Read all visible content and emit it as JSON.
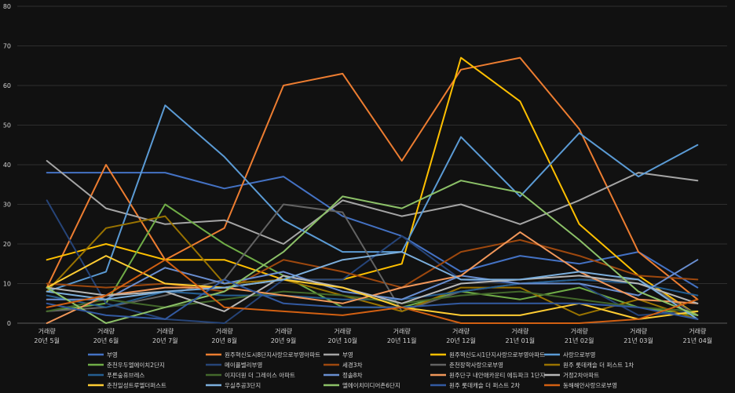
{
  "chart_data": {
    "type": "line",
    "ylim": [
      0,
      80
    ],
    "yticks": [
      0,
      10,
      20,
      30,
      40,
      50,
      60,
      70,
      80
    ],
    "grid": true,
    "legend_position": "bottom",
    "categories": [
      {
        "top": "거래량",
        "bottom": "20년 5월"
      },
      {
        "top": "거래량",
        "bottom": "20년 6월"
      },
      {
        "top": "거래량",
        "bottom": "20년 7월"
      },
      {
        "top": "거래량",
        "bottom": "20년 8월"
      },
      {
        "top": "거래량",
        "bottom": "20년 9월"
      },
      {
        "top": "거래량",
        "bottom": "20년 10월"
      },
      {
        "top": "거래량",
        "bottom": "20년 11월"
      },
      {
        "top": "거래량",
        "bottom": "20년 12월"
      },
      {
        "top": "거래량",
        "bottom": "21년 01월"
      },
      {
        "top": "거래량",
        "bottom": "21년 02월"
      },
      {
        "top": "거래량",
        "bottom": "21년 03월"
      },
      {
        "top": "거래량",
        "bottom": "21년 04월"
      }
    ],
    "series": [
      {
        "name": "부영",
        "color": "#4472c4",
        "values": [
          38,
          38,
          38,
          34,
          37,
          27,
          22,
          13,
          17,
          15,
          18,
          9
        ]
      },
      {
        "name": "원주혁신도시8단지사랑으로부영아파트",
        "color": "#ed7d31",
        "values": [
          9,
          40,
          16,
          24,
          60,
          63,
          41,
          64,
          67,
          49,
          18,
          6
        ]
      },
      {
        "name": "부영",
        "color": "#a5a5a5",
        "values": [
          41,
          29,
          25,
          26,
          20,
          31,
          27,
          30,
          25,
          31,
          38,
          36
        ]
      },
      {
        "name": "원주혁신도시1단지사랑으로부영아파트",
        "color": "#ffc000",
        "values": [
          16,
          20,
          16,
          16,
          11,
          11,
          15,
          67,
          56,
          25,
          12,
          2
        ]
      },
      {
        "name": "사랑으로부영",
        "color": "#5b9bd5",
        "values": [
          8,
          13,
          55,
          42,
          26,
          18,
          18,
          47,
          32,
          48,
          37,
          45
        ]
      },
      {
        "name": "춘천우두엘에이치2단지",
        "color": "#70ad47",
        "values": [
          3,
          5,
          30,
          20,
          12,
          4,
          4,
          8,
          6,
          9,
          4,
          2
        ]
      },
      {
        "name": "메이플벨리부영",
        "color": "#264478",
        "values": [
          31,
          5,
          1,
          0,
          11,
          11,
          22,
          11,
          10,
          10,
          2,
          3
        ]
      },
      {
        "name": "세경3차",
        "color": "#9e480e",
        "values": [
          10,
          9,
          10,
          8,
          16,
          13,
          9,
          18,
          21,
          17,
          12,
          11
        ]
      },
      {
        "name": "춘천장학사랑으로부영",
        "color": "#636363",
        "values": [
          3,
          4,
          7,
          11,
          30,
          28,
          3,
          8,
          10,
          11,
          11,
          2
        ]
      },
      {
        "name": "원주 롯데캐슬 더 퍼스트 1차",
        "color": "#997300",
        "values": [
          8,
          24,
          27,
          10,
          11,
          7,
          3,
          9,
          9,
          2,
          6,
          1
        ]
      },
      {
        "name": "푸른숲휴브레스",
        "color": "#255e91",
        "values": [
          7,
          4,
          8,
          7,
          7,
          6,
          6,
          8,
          10,
          11,
          10,
          7
        ]
      },
      {
        "name": "이지더원 더 그레이스 아파트",
        "color": "#43682b",
        "values": [
          3,
          6,
          4,
          6,
          8,
          7,
          5,
          7,
          8,
          6,
          4,
          3
        ]
      },
      {
        "name": "정솔8차",
        "color": "#698ed0",
        "values": [
          6,
          6,
          14,
          10,
          13,
          8,
          6,
          12,
          10,
          10,
          7,
          16
        ]
      },
      {
        "name": "원주단구 내안애카운티 에듀파크 1단지",
        "color": "#f1975a",
        "values": [
          0,
          7,
          9,
          9,
          7,
          5,
          9,
          12,
          23,
          13,
          6,
          5
        ]
      },
      {
        "name": "거정2차아파트",
        "color": "#b7b7b7",
        "values": [
          9,
          7,
          8,
          3,
          12,
          9,
          5,
          10,
          11,
          12,
          10,
          5
        ]
      },
      {
        "name": "춘천일성트루엘더퍼스트",
        "color": "#ffcd33",
        "values": [
          9,
          17,
          10,
          9,
          11,
          9,
          4,
          2,
          2,
          5,
          1,
          3
        ]
      },
      {
        "name": "우실주공3단지",
        "color": "#7cafdd",
        "values": [
          8,
          6,
          8,
          9,
          11,
          16,
          18,
          11,
          11,
          13,
          11,
          1
        ]
      },
      {
        "name": "엘에이치미디어촌6단지",
        "color": "#8cc168",
        "values": [
          9,
          0,
          4,
          8,
          18,
          32,
          29,
          36,
          33,
          21,
          8,
          2
        ]
      },
      {
        "name": "원주 롯데캐슬 더 퍼스트 2차",
        "color": "#335aa1",
        "values": [
          5,
          2,
          1,
          11,
          5,
          4,
          4,
          5,
          5,
          5,
          4,
          1
        ]
      },
      {
        "name": "동해해안사랑으로부영",
        "color": "#d26012",
        "values": [
          4,
          7,
          16,
          4,
          3,
          2,
          4,
          0,
          0,
          0,
          1,
          6
        ]
      }
    ]
  }
}
